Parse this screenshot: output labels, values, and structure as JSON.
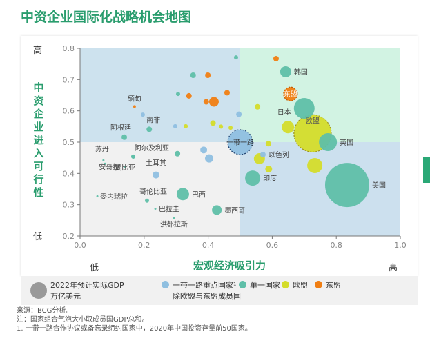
{
  "title": "中资企业国际化战略机会地图",
  "axes": {
    "ylabel": "中资企业进入可行性",
    "y_high": "高",
    "y_low": "低",
    "xlabel": "宏观经济吸引力",
    "x_low": "低",
    "x_high": "高"
  },
  "legend": {
    "size_label_line1": "2022年预计实际GDP",
    "size_label_line2": "万亿美元",
    "items": [
      {
        "label": "一带一路重点国家¹",
        "label2": "除欧盟与东盟成员国",
        "color": "#8fbfe0"
      },
      {
        "label": "单一国家",
        "color": "#5fbfa8"
      },
      {
        "label": "欧盟",
        "color": "#d4dc2a"
      },
      {
        "label": "东盟",
        "color": "#f07e12"
      }
    ]
  },
  "notes": [
    "来源：BCG分析。",
    "注：国家组合气泡大小取成员国GDP总和。",
    "1. 一带一路合作协议或备忘录缔约国家中，2020年中国投资存量前50国家。"
  ],
  "chart_data": {
    "type": "scatter",
    "xlim": [
      0,
      1.0
    ],
    "ylim": [
      0.2,
      0.8
    ],
    "xticks": [
      "0.0",
      "0.2",
      "0.4",
      "0.6",
      "0.8",
      "1.0"
    ],
    "yticks": [
      "0.2",
      "0.3",
      "0.4",
      "0.5",
      "0.6",
      "0.7",
      "0.8"
    ],
    "quadrant_split": {
      "x": 0.5,
      "y": 0.5
    },
    "quadrant_colors": {
      "top_left": "#cde2ee",
      "top_right": "#d2f3e3",
      "bottom_left": "#f1f1f1",
      "bottom_right": "#cce0ee"
    },
    "bubbles": [
      {
        "label": "美国",
        "group": "single",
        "x": 0.834,
        "y": 0.363,
        "size": 32
      },
      {
        "label": "欧盟",
        "group": "eu",
        "x": 0.726,
        "y": 0.528,
        "size": 27,
        "dashed": true
      },
      {
        "label": "日本",
        "group": "single",
        "x": 0.7,
        "y": 0.608,
        "size": 15
      },
      {
        "label": "英国",
        "group": "single",
        "x": 0.774,
        "y": 0.5,
        "size": 13
      },
      {
        "label": "韩国",
        "group": "single",
        "x": 0.642,
        "y": 0.725,
        "size": 8
      },
      {
        "label": "东盟",
        "group": "asean",
        "x": 0.657,
        "y": 0.654,
        "size": 10,
        "dashed": true
      },
      {
        "label": "一带一路",
        "group": "bri",
        "x": 0.5,
        "y": 0.5,
        "size": 18,
        "dashed": true
      },
      {
        "label": "印度",
        "group": "single",
        "x": 0.539,
        "y": 0.385,
        "size": 11
      },
      {
        "label": "以色列",
        "group": "bri",
        "x": 0.571,
        "y": 0.46,
        "size": 4
      },
      {
        "label": "巴西",
        "group": "single",
        "x": 0.321,
        "y": 0.334,
        "size": 9
      },
      {
        "label": "墨西哥",
        "group": "single",
        "x": 0.427,
        "y": 0.283,
        "size": 7
      },
      {
        "label": "缅甸",
        "group": "asean",
        "x": 0.17,
        "y": 0.614,
        "size": 2
      },
      {
        "label": "南非",
        "group": "single",
        "x": 0.216,
        "y": 0.541,
        "size": 4
      },
      {
        "label": "阿根廷",
        "group": "single",
        "x": 0.138,
        "y": 0.516,
        "size": 4
      },
      {
        "label": "阿尔及利亚",
        "group": "single",
        "x": 0.166,
        "y": 0.454,
        "size": 3
      },
      {
        "label": "苏丹",
        "group": "single",
        "x": 0.073,
        "y": 0.442,
        "size": 1.5
      },
      {
        "label": "安哥拉",
        "group": "single",
        "x": 0.078,
        "y": 0.431,
        "size": 1.5
      },
      {
        "label": "赞比亚",
        "group": "single",
        "x": 0.14,
        "y": 0.42,
        "size": 1.5
      },
      {
        "label": "土耳其",
        "group": "bri",
        "x": 0.237,
        "y": 0.395,
        "size": 5
      },
      {
        "label": "委内瑞拉",
        "group": "single",
        "x": 0.054,
        "y": 0.327,
        "size": 1.5
      },
      {
        "label": "哥伦比亚",
        "group": "single",
        "x": 0.209,
        "y": 0.313,
        "size": 3
      },
      {
        "label": "巴拉圭",
        "group": "single",
        "x": 0.235,
        "y": 0.287,
        "size": 1.5
      },
      {
        "label": "洪都拉斯",
        "group": "single",
        "x": 0.293,
        "y": 0.258,
        "size": 1.5
      },
      {
        "label": "",
        "group": "eu",
        "x": 0.733,
        "y": 0.425,
        "size": 11
      },
      {
        "label": "",
        "group": "eu",
        "x": 0.649,
        "y": 0.548,
        "size": 9
      },
      {
        "label": "",
        "group": "eu",
        "x": 0.56,
        "y": 0.447,
        "size": 8
      },
      {
        "label": "",
        "group": "eu",
        "x": 0.589,
        "y": 0.414,
        "size": 5
      },
      {
        "label": "",
        "group": "eu",
        "x": 0.554,
        "y": 0.613,
        "size": 4
      },
      {
        "label": "",
        "group": "eu",
        "x": 0.588,
        "y": 0.495,
        "size": 4
      },
      {
        "label": "",
        "group": "asean",
        "x": 0.612,
        "y": 0.767,
        "size": 4
      },
      {
        "label": "",
        "group": "asean",
        "x": 0.418,
        "y": 0.629,
        "size": 7
      },
      {
        "label": "",
        "group": "asean",
        "x": 0.394,
        "y": 0.629,
        "size": 4
      },
      {
        "label": "",
        "group": "asean",
        "x": 0.34,
        "y": 0.648,
        "size": 4
      },
      {
        "label": "",
        "group": "asean",
        "x": 0.459,
        "y": 0.658,
        "size": 4
      },
      {
        "label": "",
        "group": "asean",
        "x": 0.399,
        "y": 0.714,
        "size": 4
      },
      {
        "label": "",
        "group": "single",
        "x": 0.487,
        "y": 0.771,
        "size": 3
      },
      {
        "label": "",
        "group": "single",
        "x": 0.353,
        "y": 0.714,
        "size": 4
      },
      {
        "label": "",
        "group": "single",
        "x": 0.306,
        "y": 0.654,
        "size": 3
      },
      {
        "label": "",
        "group": "single",
        "x": 0.304,
        "y": 0.463,
        "size": 4
      },
      {
        "label": "",
        "group": "single",
        "x": 0.166,
        "y": 0.454,
        "size": 3
      },
      {
        "label": "",
        "group": "bri",
        "x": 0.386,
        "y": 0.475,
        "size": 5
      },
      {
        "label": "",
        "group": "bri",
        "x": 0.403,
        "y": 0.448,
        "size": 6
      },
      {
        "label": "",
        "group": "bri",
        "x": 0.196,
        "y": 0.588,
        "size": 3
      },
      {
        "label": "",
        "group": "bri",
        "x": 0.496,
        "y": 0.589,
        "size": 4
      },
      {
        "label": "",
        "group": "bri",
        "x": 0.297,
        "y": 0.551,
        "size": 3
      },
      {
        "label": "",
        "group": "eu",
        "x": 0.415,
        "y": 0.561,
        "size": 4
      },
      {
        "label": "",
        "group": "eu",
        "x": 0.44,
        "y": 0.55,
        "size": 3
      },
      {
        "label": "",
        "group": "eu",
        "x": 0.47,
        "y": 0.546,
        "size": 3
      },
      {
        "label": "",
        "group": "eu",
        "x": 0.33,
        "y": 0.551,
        "size": 3
      }
    ]
  }
}
